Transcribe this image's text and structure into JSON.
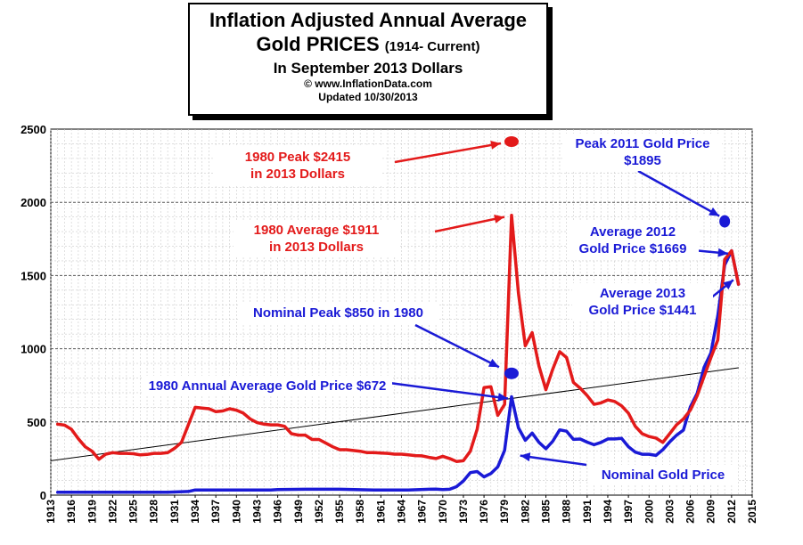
{
  "title": {
    "line1": "Inflation Adjusted Annual Average",
    "line2_main": "Gold PRICES",
    "line2_sub": "(1914- Current)",
    "line3": "In September 2013 Dollars",
    "line4": "© www.InflationData.com",
    "line5": "Updated 10/30/2013"
  },
  "colors": {
    "real": "#e31a1a",
    "nominal": "#1a1ad6",
    "trend": "#000000"
  },
  "annotations": {
    "peak_1980_l1": "1980 Peak $2415",
    "peak_1980_l2": "in 2013 Dollars",
    "avg_1980_l1": "1980 Average $1911",
    "avg_1980_l2": "in 2013 Dollars",
    "peak_2011_l1": "Peak 2011 Gold Price",
    "peak_2011_l2": "$1895",
    "avg_2012_l1": "Average 2012",
    "avg_2012_l2": "Gold Price $1669",
    "avg_2013_l1": "Average 2013",
    "avg_2013_l2": "Gold Price $1441",
    "nominal_peak": "Nominal Peak $850 in 1980",
    "nominal_avg_1980": "1980 Annual Average Gold Price $672",
    "nominal_label": "Nominal Gold Price"
  },
  "chart_data": {
    "type": "line",
    "xlim": [
      1913,
      2015
    ],
    "ylim": [
      0,
      2500
    ],
    "yticks": [
      0,
      500,
      1000,
      1500,
      2000,
      2500
    ],
    "xticks": [
      1913,
      1916,
      1919,
      1922,
      1925,
      1928,
      1931,
      1934,
      1937,
      1940,
      1943,
      1946,
      1949,
      1952,
      1955,
      1958,
      1961,
      1964,
      1967,
      1970,
      1973,
      1976,
      1979,
      1982,
      1985,
      1988,
      1991,
      1994,
      1997,
      2000,
      2003,
      2006,
      2009,
      2012,
      2015
    ],
    "grid": true,
    "series": [
      {
        "key": "real",
        "x": [
          1914,
          1915,
          1916,
          1917,
          1918,
          1919,
          1920,
          1921,
          1922,
          1923,
          1924,
          1925,
          1926,
          1927,
          1928,
          1929,
          1930,
          1931,
          1932,
          1933,
          1934,
          1935,
          1936,
          1937,
          1938,
          1939,
          1940,
          1941,
          1942,
          1943,
          1944,
          1945,
          1946,
          1947,
          1948,
          1949,
          1950,
          1951,
          1952,
          1953,
          1954,
          1955,
          1956,
          1957,
          1958,
          1959,
          1960,
          1961,
          1962,
          1963,
          1964,
          1965,
          1966,
          1967,
          1968,
          1969,
          1970,
          1971,
          1972,
          1973,
          1974,
          1975,
          1976,
          1977,
          1978,
          1979,
          1980,
          1981,
          1982,
          1983,
          1984,
          1985,
          1986,
          1987,
          1988,
          1989,
          1990,
          1991,
          1992,
          1993,
          1994,
          1995,
          1996,
          1997,
          1998,
          1999,
          2000,
          2001,
          2002,
          2003,
          2004,
          2005,
          2006,
          2007,
          2008,
          2009,
          2010,
          2011,
          2012,
          2013
        ],
        "y": [
          485,
          478,
          450,
          385,
          330,
          300,
          245,
          280,
          290,
          285,
          285,
          283,
          275,
          278,
          285,
          285,
          290,
          320,
          360,
          480,
          600,
          595,
          590,
          570,
          575,
          590,
          580,
          560,
          520,
          495,
          485,
          480,
          480,
          470,
          420,
          410,
          410,
          380,
          380,
          355,
          330,
          310,
          310,
          305,
          300,
          290,
          290,
          288,
          285,
          280,
          280,
          275,
          270,
          268,
          258,
          250,
          265,
          250,
          230,
          235,
          300,
          450,
          735,
          740,
          545,
          620,
          1911,
          1380,
          1020,
          1110,
          880,
          720,
          860,
          980,
          940,
          770,
          730,
          680,
          620,
          630,
          650,
          640,
          610,
          560,
          470,
          420,
          400,
          390,
          360,
          420,
          480,
          520,
          580,
          680,
          810,
          940,
          1060,
          1610,
          1669,
          1441
        ]
      },
      {
        "key": "nominal",
        "x": [
          1914,
          1920,
          1930,
          1933,
          1934,
          1940,
          1945,
          1946,
          1950,
          1955,
          1960,
          1965,
          1968,
          1969,
          1970,
          1971,
          1972,
          1973,
          1974,
          1975,
          1976,
          1977,
          1978,
          1979,
          1980,
          1981,
          1982,
          1983,
          1984,
          1985,
          1986,
          1987,
          1988,
          1989,
          1990,
          1991,
          1992,
          1993,
          1994,
          1995,
          1996,
          1997,
          1998,
          1999,
          2000,
          2001,
          2002,
          2003,
          2004,
          2005,
          2006,
          2007,
          2008,
          2009,
          2010,
          2011,
          2012,
          2013
        ],
        "y": [
          20,
          20,
          20,
          25,
          35,
          35,
          35,
          38,
          40,
          40,
          35,
          35,
          40,
          41,
          38,
          40,
          58,
          97,
          154,
          161,
          125,
          148,
          193,
          306,
          672,
          460,
          375,
          424,
          360,
          317,
          368,
          446,
          437,
          381,
          383,
          362,
          344,
          360,
          384,
          384,
          388,
          331,
          294,
          279,
          279,
          271,
          310,
          363,
          409,
          444,
          603,
          695,
          872,
          972,
          1225,
          1572,
          1669,
          1441
        ]
      },
      {
        "key": "trend",
        "x": [
          1913,
          2013
        ],
        "y": [
          235,
          870
        ]
      }
    ]
  }
}
